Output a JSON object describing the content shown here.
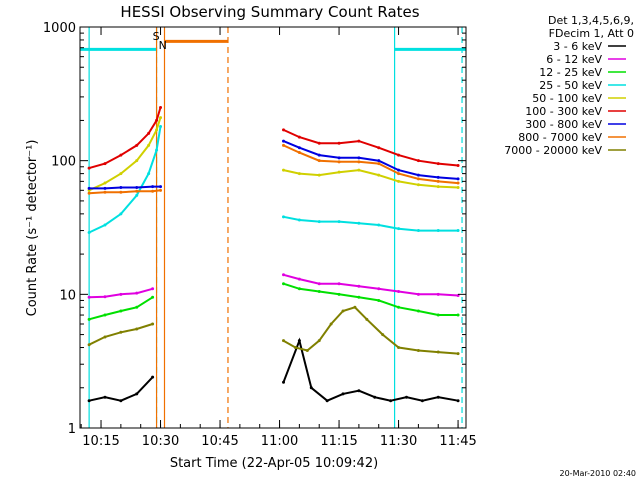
{
  "chart_data": {
    "type": "line",
    "title": "HESSI Observing Summary Count Rates",
    "xlabel": "Start Time (22-Apr-05 10:09:42)",
    "ylabel": "Count Rate (s⁻¹ detector⁻¹)",
    "y_scale": "log",
    "ylim": [
      1,
      1000
    ],
    "xlim": [
      "10:09:42",
      "11:47:00"
    ],
    "y_ticks": [
      "1",
      "10",
      "100",
      "1000"
    ],
    "x_ticks": [
      "10:15",
      "10:30",
      "10:45",
      "11:00",
      "11:15",
      "11:30",
      "11:45"
    ],
    "legend_header": [
      "Det 1,3,4,5,6,9,",
      "FDecim 1, Att 0"
    ],
    "legend_position": "right, outside plot",
    "flag_labels": [
      "S",
      "N"
    ],
    "footer_date": "20-Mar-2010 02:40",
    "series": [
      {
        "name": "3 - 6 keV",
        "color": "#000000",
        "x": [
          "10:12",
          "10:16",
          "10:20",
          "10:24",
          "10:28",
          "10:36",
          "11:01",
          "11:05",
          "11:08",
          "11:12",
          "11:16",
          "11:20",
          "11:24",
          "11:28",
          "11:32",
          "11:36",
          "11:40",
          "11:45"
        ],
        "values": [
          1.6,
          1.7,
          1.6,
          1.8,
          2.4,
          null,
          2.2,
          4.5,
          2.0,
          1.6,
          1.8,
          1.9,
          1.7,
          1.6,
          1.7,
          1.6,
          1.7,
          1.6
        ]
      },
      {
        "name": "6 - 12 keV",
        "color": "#e000e0",
        "x": [
          "10:12",
          "10:16",
          "10:20",
          "10:24",
          "10:28",
          "10:36",
          "11:01",
          "11:05",
          "11:10",
          "11:15",
          "11:20",
          "11:25",
          "11:30",
          "11:35",
          "11:40",
          "11:45"
        ],
        "values": [
          9.5,
          9.6,
          10,
          10.2,
          11,
          null,
          14,
          13,
          12,
          12,
          11.5,
          11,
          10.5,
          10,
          10,
          9.8
        ]
      },
      {
        "name": "12 - 25 keV",
        "color": "#00e000",
        "x": [
          "10:12",
          "10:16",
          "10:20",
          "10:24",
          "10:28",
          "10:36",
          "11:01",
          "11:05",
          "11:10",
          "11:15",
          "11:20",
          "11:25",
          "11:30",
          "11:35",
          "11:40",
          "11:45"
        ],
        "values": [
          6.5,
          7,
          7.5,
          8,
          9.5,
          null,
          12,
          11,
          10.5,
          10,
          9.5,
          9,
          8,
          7.5,
          7,
          7
        ]
      },
      {
        "name": "25 - 50 keV",
        "color": "#00e0e0",
        "x": [
          "10:12",
          "10:16",
          "10:20",
          "10:24",
          "10:27",
          "10:29",
          "10:30",
          "10:36",
          "11:01",
          "11:05",
          "11:10",
          "11:15",
          "11:20",
          "11:25",
          "11:30",
          "11:35",
          "11:40",
          "11:45"
        ],
        "values": [
          29,
          33,
          40,
          55,
          80,
          120,
          180,
          null,
          38,
          36,
          35,
          35,
          34,
          33,
          31,
          30,
          30,
          30
        ]
      },
      {
        "name": "50 - 100 keV",
        "color": "#d0d000",
        "x": [
          "10:12",
          "10:16",
          "10:20",
          "10:24",
          "10:27",
          "10:29",
          "10:30",
          "10:36",
          "11:01",
          "11:05",
          "11:10",
          "11:15",
          "11:20",
          "11:25",
          "11:30",
          "11:35",
          "11:40",
          "11:45"
        ],
        "values": [
          60,
          68,
          80,
          100,
          130,
          170,
          210,
          null,
          85,
          80,
          78,
          82,
          85,
          78,
          70,
          66,
          64,
          63
        ]
      },
      {
        "name": "100 - 300 keV",
        "color": "#e00000",
        "x": [
          "10:12",
          "10:16",
          "10:20",
          "10:24",
          "10:27",
          "10:29",
          "10:30",
          "10:36",
          "11:01",
          "11:05",
          "11:10",
          "11:15",
          "11:20",
          "11:25",
          "11:30",
          "11:35",
          "11:40",
          "11:45"
        ],
        "values": [
          88,
          95,
          110,
          130,
          160,
          200,
          250,
          null,
          170,
          150,
          135,
          135,
          140,
          125,
          110,
          100,
          95,
          92
        ]
      },
      {
        "name": "300 - 800 keV",
        "color": "#0000e0",
        "x": [
          "10:12",
          "10:16",
          "10:20",
          "10:24",
          "10:28",
          "10:30",
          "10:36",
          "11:01",
          "11:05",
          "11:10",
          "11:15",
          "11:20",
          "11:25",
          "11:30",
          "11:35",
          "11:40",
          "11:45"
        ],
        "values": [
          62,
          62,
          63,
          63,
          64,
          64,
          null,
          140,
          125,
          110,
          105,
          105,
          100,
          85,
          78,
          75,
          73
        ]
      },
      {
        "name": "800 - 7000 keV",
        "color": "#f07000",
        "x": [
          "10:12",
          "10:16",
          "10:20",
          "10:24",
          "10:28",
          "10:30",
          "10:36",
          "11:01",
          "11:05",
          "11:10",
          "11:15",
          "11:20",
          "11:25",
          "11:30",
          "11:35",
          "11:40",
          "11:45"
        ],
        "values": [
          57,
          58,
          58,
          59,
          59,
          60,
          null,
          130,
          115,
          100,
          98,
          98,
          95,
          80,
          73,
          70,
          68
        ]
      },
      {
        "name": "7000 - 20000 keV",
        "color": "#808000",
        "x": [
          "10:12",
          "10:16",
          "10:20",
          "10:24",
          "10:28",
          "10:36",
          "11:01",
          "11:04",
          "11:07",
          "11:10",
          "11:13",
          "11:16",
          "11:19",
          "11:22",
          "11:26",
          "11:30",
          "11:35",
          "11:40",
          "11:45"
        ],
        "values": [
          4.2,
          4.8,
          5.2,
          5.5,
          6,
          null,
          4.5,
          4,
          3.8,
          4.5,
          6,
          7.5,
          8,
          6.5,
          5,
          4,
          3.8,
          3.7,
          3.6
        ]
      }
    ],
    "vertical_markers": [
      {
        "time": "10:12",
        "style": "solid",
        "color": "#00e0e0"
      },
      {
        "time": "10:29",
        "style": "dashed",
        "color": "#00e0e0"
      },
      {
        "time": "10:29",
        "style": "solid",
        "color": "#f07000"
      },
      {
        "time": "10:31",
        "style": "solid",
        "color": "#f07000"
      },
      {
        "time": "10:47",
        "style": "dashed",
        "color": "#f07000"
      },
      {
        "time": "11:29",
        "style": "solid",
        "color": "#00e0e0"
      },
      {
        "time": "11:46",
        "style": "dashed",
        "color": "#00e0e0"
      }
    ],
    "flag_bars": [
      {
        "from": "10:09:42",
        "to": "10:29",
        "value": 680,
        "color": "#00e0e0"
      },
      {
        "from": "11:29",
        "to": "11:47",
        "value": 680,
        "color": "#00e0e0"
      },
      {
        "from": "10:31",
        "to": "10:47",
        "value": 780,
        "color": "#f07000"
      }
    ]
  }
}
